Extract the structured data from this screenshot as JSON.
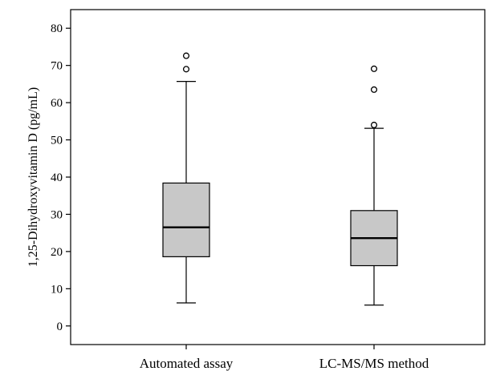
{
  "chart_data": {
    "type": "boxplot",
    "title": "",
    "xlabel": "",
    "ylabel": "1,25-Dihydroxyvitamin D (pg/mL)",
    "ylim": [
      -5,
      85
    ],
    "yticks": [
      "0",
      "10",
      "20",
      "30",
      "40",
      "50",
      "60",
      "70",
      "80"
    ],
    "grid": false,
    "box_fill": "#c8c8c8",
    "line_color": "#000000",
    "categories": [
      "Automated assay",
      "LC-MS/MS method"
    ],
    "boxes": [
      {
        "name": "Automated assay",
        "whisker_low": 6.2,
        "q1": 18.6,
        "median": 26.5,
        "q3": 38.4,
        "whisker_high": 65.7,
        "outliers": [
          69.0,
          72.6
        ]
      },
      {
        "name": "LC-MS/MS method",
        "whisker_low": 5.6,
        "q1": 16.2,
        "median": 23.6,
        "q3": 31.0,
        "whisker_high": 53.1,
        "outliers": [
          54.0,
          63.5,
          69.1
        ]
      }
    ]
  }
}
